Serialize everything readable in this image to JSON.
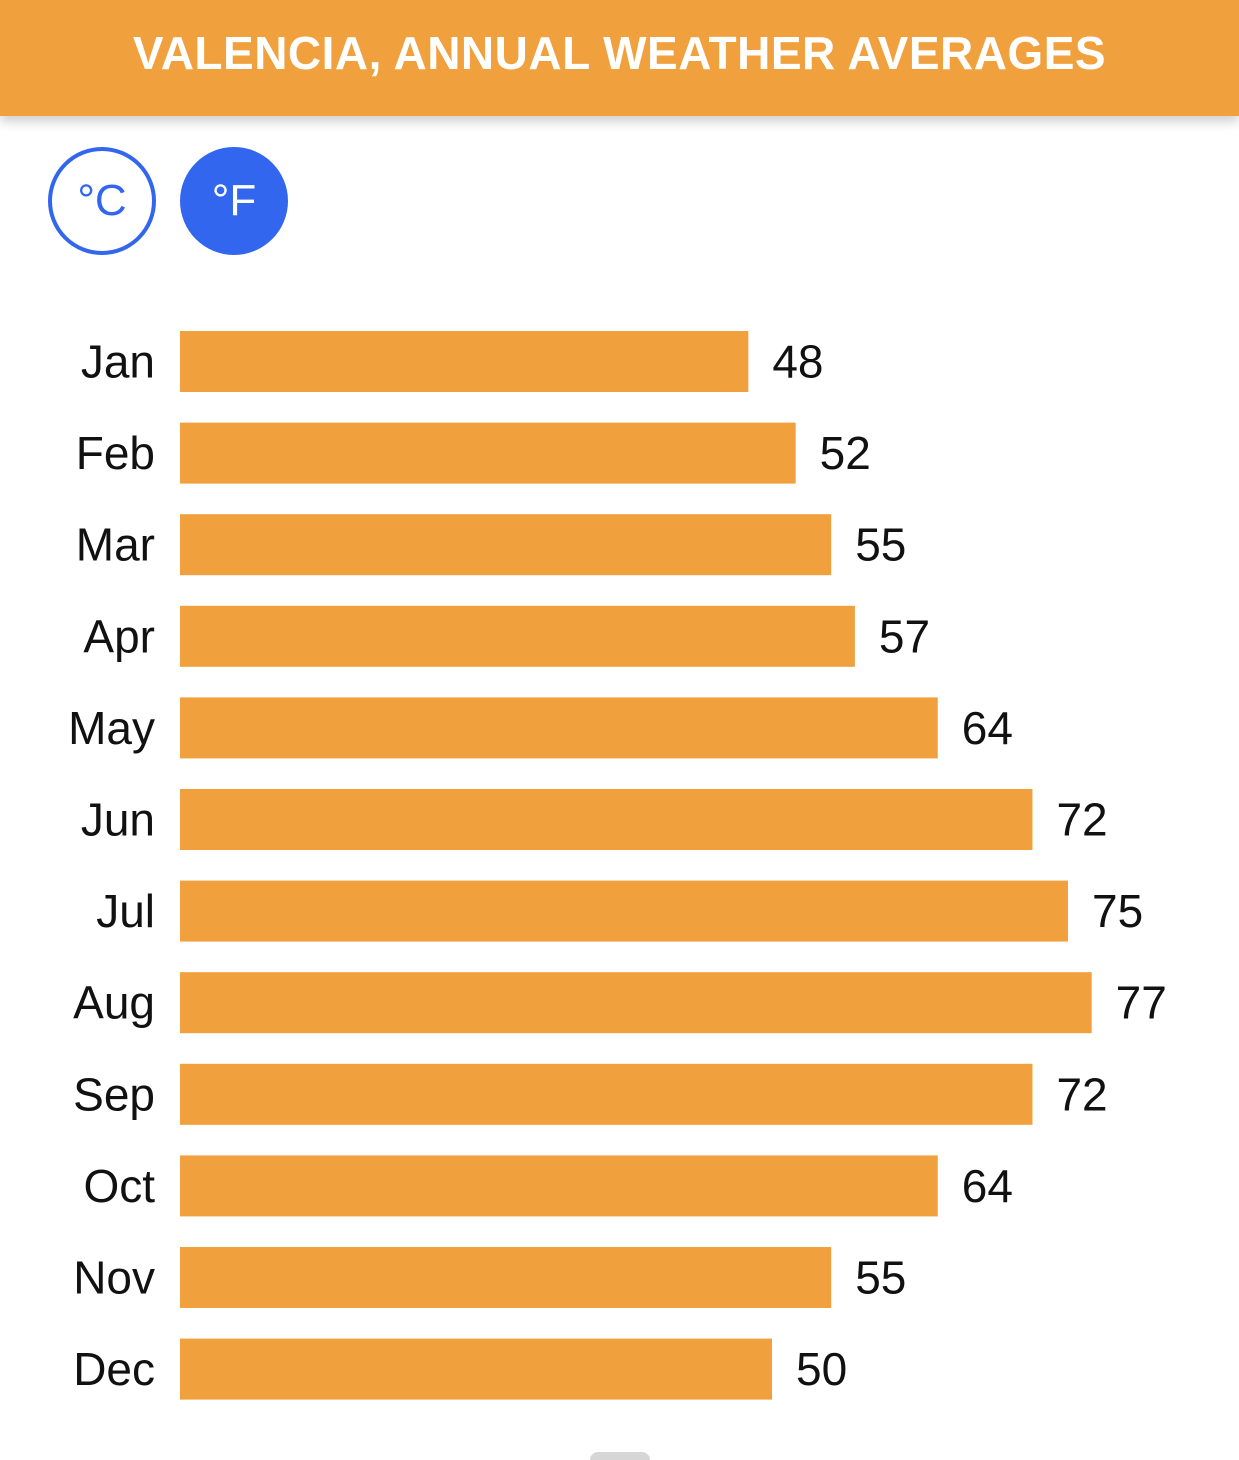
{
  "header": {
    "title": "VALENCIA, ANNUAL WEATHER AVERAGES"
  },
  "units": {
    "celsius_label": "°C",
    "fahrenheit_label": "°F",
    "selected": "°F"
  },
  "colors": {
    "header_bg": "#f0a03c",
    "bar": "#f0a03c",
    "accent_blue": "#3366ee",
    "text": "#111111"
  },
  "chart_data": {
    "type": "bar",
    "orientation": "horizontal",
    "title": "",
    "xlabel": "",
    "ylabel": "",
    "categories": [
      "Jan",
      "Feb",
      "Mar",
      "Apr",
      "May",
      "Jun",
      "Jul",
      "Aug",
      "Sep",
      "Oct",
      "Nov",
      "Dec"
    ],
    "values": [
      48,
      52,
      55,
      57,
      64,
      72,
      75,
      77,
      72,
      64,
      55,
      50
    ],
    "xlim": [
      0,
      80
    ],
    "grid": false,
    "data_labels": true
  }
}
